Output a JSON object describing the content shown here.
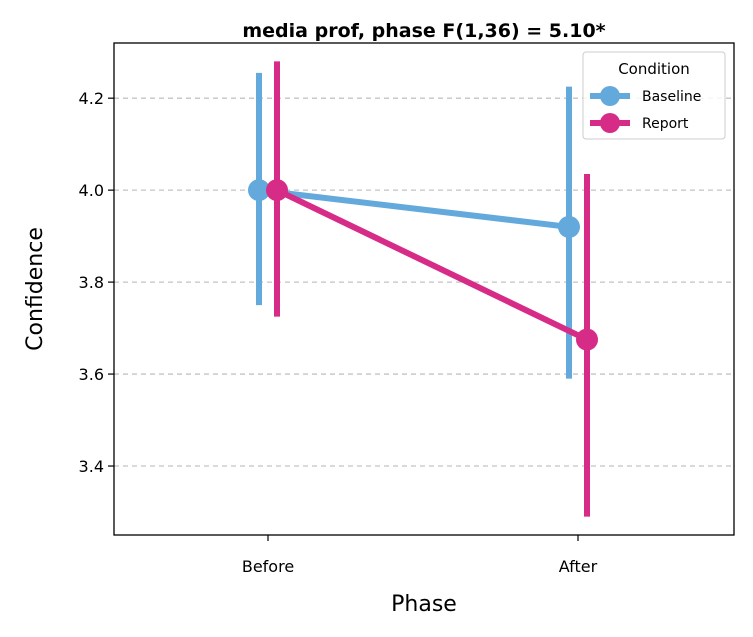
{
  "chart_data": {
    "type": "line",
    "title": "media prof, phase F(1,36) = 5.10*",
    "xlabel": "Phase",
    "ylabel": "Confidence",
    "categories": [
      "Before",
      "After"
    ],
    "ylim": [
      3.25,
      4.32
    ],
    "yticks": [
      3.4,
      3.6,
      3.8,
      4.0,
      4.2
    ],
    "ytick_labels": [
      "3.4",
      "3.6",
      "3.8",
      "4.0",
      "4.2"
    ],
    "grid": "y-dashed",
    "legend": {
      "title": "Condition",
      "placement": "top-right"
    },
    "series": [
      {
        "name": "Baseline",
        "color": "#64a9dc",
        "values": [
          4.0,
          3.92
        ],
        "err_low": [
          3.75,
          3.59
        ],
        "err_high": [
          4.255,
          4.225
        ]
      },
      {
        "name": "Report",
        "color": "#d62c88",
        "values": [
          4.0,
          3.675
        ],
        "err_low": [
          3.725,
          3.29
        ],
        "err_high": [
          4.28,
          4.035
        ]
      }
    ]
  }
}
